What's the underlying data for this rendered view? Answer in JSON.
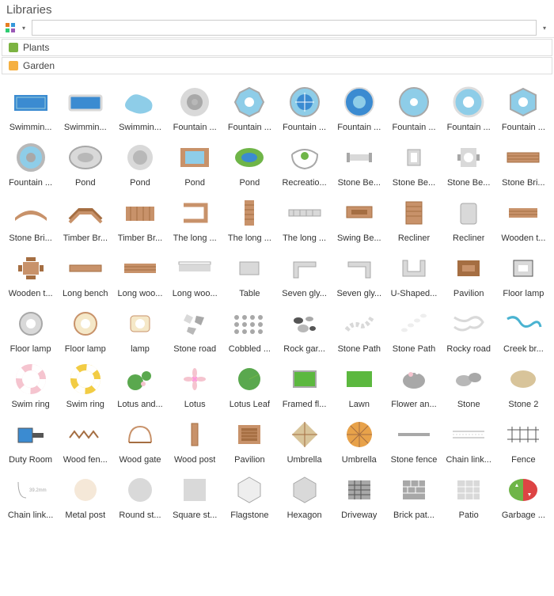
{
  "panel": {
    "title": "Libraries"
  },
  "toolbar": {
    "search_value": ""
  },
  "categories": [
    {
      "label": "Plants",
      "color": "#7cb342"
    },
    {
      "label": "Garden",
      "color": "#f5b041"
    }
  ],
  "colors": {
    "pool_blue": "#3b8bd1",
    "pool_light": "#8ecde8",
    "stone_gray": "#b8b8b8",
    "wood": "#c8926a",
    "wood_dark": "#a56e42",
    "green": "#6fb548",
    "grass": "#5cb83f",
    "leaf": "#5aa84e",
    "pink": "#f5c4cf",
    "yellow": "#f2cc44",
    "orange": "#e8a24a",
    "white": "#ffffff",
    "gray_light": "#d9d9d9",
    "gray": "#a8a8a8",
    "dark": "#555555",
    "beige": "#d8c49a",
    "red": "#d44",
    "teal": "#4ab3d1"
  },
  "items": [
    {
      "label": "Swimmin...",
      "shape": "pool-rect"
    },
    {
      "label": "Swimmin...",
      "shape": "pool-rect2"
    },
    {
      "label": "Swimmin...",
      "shape": "pool-free"
    },
    {
      "label": "Fountain ...",
      "shape": "fountain-round-gray"
    },
    {
      "label": "Fountain ...",
      "shape": "fountain-oct-blue"
    },
    {
      "label": "Fountain ...",
      "shape": "fountain-round-blue"
    },
    {
      "label": "Fountain ...",
      "shape": "fountain-round-blue2"
    },
    {
      "label": "Fountain ...",
      "shape": "fountain-round-blue3"
    },
    {
      "label": "Fountain ...",
      "shape": "fountain-round-light"
    },
    {
      "label": "Fountain ...",
      "shape": "fountain-hex-blue"
    },
    {
      "label": "Fountain ...",
      "shape": "fountain-drum"
    },
    {
      "label": "Pond",
      "shape": "pond-oval-gray"
    },
    {
      "label": "Pond",
      "shape": "pond-round-gray"
    },
    {
      "label": "Pond",
      "shape": "pond-deck"
    },
    {
      "label": "Pond",
      "shape": "pond-green"
    },
    {
      "label": "Recreatio...",
      "shape": "recreation"
    },
    {
      "label": "Stone Be...",
      "shape": "bench-gray1"
    },
    {
      "label": "Stone Be...",
      "shape": "bench-gray2"
    },
    {
      "label": "Stone Be...",
      "shape": "bench-gray3"
    },
    {
      "label": "Stone Bri...",
      "shape": "bridge-stone"
    },
    {
      "label": "Stone Bri...",
      "shape": "bridge-stone2"
    },
    {
      "label": "Timber Br...",
      "shape": "bridge-wood1"
    },
    {
      "label": "Timber Br...",
      "shape": "bridge-wood2"
    },
    {
      "label": "The long ...",
      "shape": "long-wood1"
    },
    {
      "label": "The long ...",
      "shape": "long-wood2"
    },
    {
      "label": "The long ...",
      "shape": "long-wood3"
    },
    {
      "label": "Swing Be...",
      "shape": "swing"
    },
    {
      "label": "Recliner",
      "shape": "recliner1"
    },
    {
      "label": "Recliner",
      "shape": "recliner2"
    },
    {
      "label": "Wooden t...",
      "shape": "wood-table1"
    },
    {
      "label": "Wooden t...",
      "shape": "wood-table2"
    },
    {
      "label": "Long bench",
      "shape": "long-bench"
    },
    {
      "label": "Long woo...",
      "shape": "long-wood-bench1"
    },
    {
      "label": "Long woo...",
      "shape": "long-wood-bench2"
    },
    {
      "label": "Table",
      "shape": "table-gray"
    },
    {
      "label": "Seven gly...",
      "shape": "seven-gly1"
    },
    {
      "label": "Seven gly...",
      "shape": "seven-gly2"
    },
    {
      "label": "U-Shaped...",
      "shape": "u-shape"
    },
    {
      "label": "Pavilion",
      "shape": "pavilion-wood"
    },
    {
      "label": "Floor lamp",
      "shape": "lamp-sq"
    },
    {
      "label": "Floor lamp",
      "shape": "lamp-round1"
    },
    {
      "label": "Floor lamp",
      "shape": "lamp-round2"
    },
    {
      "label": "lamp",
      "shape": "lamp-round3"
    },
    {
      "label": "Stone road",
      "shape": "stone-road"
    },
    {
      "label": "Cobbled ...",
      "shape": "cobbled"
    },
    {
      "label": "Rock gar...",
      "shape": "rock-garden"
    },
    {
      "label": "Stone Path",
      "shape": "stone-path1"
    },
    {
      "label": "Stone Path",
      "shape": "stone-path2"
    },
    {
      "label": "Rocky road",
      "shape": "rocky-road"
    },
    {
      "label": "Creek br...",
      "shape": "creek"
    },
    {
      "label": "Swim ring",
      "shape": "ring-pink"
    },
    {
      "label": "Swim ring",
      "shape": "ring-yellow"
    },
    {
      "label": "Lotus and...",
      "shape": "lotus-leaf-combo"
    },
    {
      "label": "Lotus",
      "shape": "lotus"
    },
    {
      "label": "Lotus Leaf",
      "shape": "lotus-leaf"
    },
    {
      "label": "Framed fl...",
      "shape": "framed"
    },
    {
      "label": "Lawn",
      "shape": "lawn"
    },
    {
      "label": "Flower an...",
      "shape": "flower-stone"
    },
    {
      "label": "Stone",
      "shape": "stone1"
    },
    {
      "label": "Stone 2",
      "shape": "stone2"
    },
    {
      "label": "Duty Room",
      "shape": "duty-room"
    },
    {
      "label": "Wood fen...",
      "shape": "wood-fence"
    },
    {
      "label": "Wood gate",
      "shape": "wood-gate"
    },
    {
      "label": "Wood post",
      "shape": "wood-post"
    },
    {
      "label": "Pavilion",
      "shape": "pavilion-sq"
    },
    {
      "label": "Umbrella",
      "shape": "umbrella1"
    },
    {
      "label": "Umbrella",
      "shape": "umbrella2"
    },
    {
      "label": "Stone fence",
      "shape": "stone-fence"
    },
    {
      "label": "Chain link...",
      "shape": "chain-link"
    },
    {
      "label": "Fence",
      "shape": "fence"
    },
    {
      "label": "Chain link...",
      "shape": "chain-link2"
    },
    {
      "label": "Metal post",
      "shape": "metal-post"
    },
    {
      "label": "Round st...",
      "shape": "round-st"
    },
    {
      "label": "Square st...",
      "shape": "square-st"
    },
    {
      "label": "Flagstone",
      "shape": "flagstone"
    },
    {
      "label": "Hexagon",
      "shape": "hexagon"
    },
    {
      "label": "Driveway",
      "shape": "driveway"
    },
    {
      "label": "Brick pat...",
      "shape": "brick"
    },
    {
      "label": "Patio",
      "shape": "patio"
    },
    {
      "label": "Garbage ...",
      "shape": "garbage"
    }
  ]
}
